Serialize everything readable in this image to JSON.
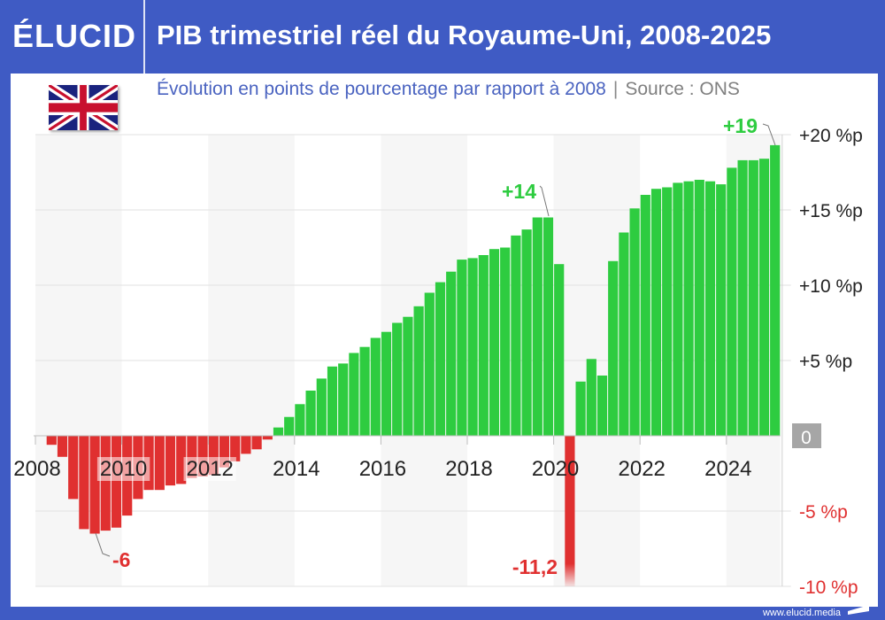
{
  "header": {
    "logo": "ÉLUCID",
    "title": "PIB trimestriel réel du Royaume-Uni, 2008-2025"
  },
  "subtitle": {
    "text": "Évolution en points de pourcentage par rapport à 2008",
    "separator": "|",
    "source": "Source : ONS"
  },
  "flag_icon": "united-kingdom-flag",
  "footer": {
    "url": "www.elucid.media"
  },
  "colors": {
    "frame": "#3f5bc4",
    "positive": "#2ecc40",
    "negative": "#e03030",
    "zero_badge": "#a6a6a6"
  },
  "chart_data": {
    "type": "bar",
    "title": "PIB trimestriel réel du Royaume-Uni, 2008-2025",
    "frequency": "quarterly",
    "start": "2008 T1",
    "end": "2025 T1",
    "ylim": [
      -10,
      20
    ],
    "yticks": [
      {
        "value": 20,
        "label": "+20 %p"
      },
      {
        "value": 15,
        "label": "+15 %p"
      },
      {
        "value": 10,
        "label": "+10 %p"
      },
      {
        "value": 5,
        "label": "+5 %p"
      },
      {
        "value": 0,
        "label": "0"
      },
      {
        "value": -5,
        "label": "-5 %p"
      },
      {
        "value": -10,
        "label": "-10 %p"
      }
    ],
    "xticks": [
      "2008",
      "2010",
      "2012",
      "2014",
      "2016",
      "2018",
      "2020",
      "2022",
      "2024"
    ],
    "grid": true,
    "values": [
      0,
      -0.6,
      -1.4,
      -4.2,
      -6.2,
      -6.5,
      -6.3,
      -6.1,
      -5.3,
      -4.2,
      -3.6,
      -3.6,
      -3.3,
      -3.2,
      -2.8,
      -2.7,
      -2.6,
      -2.1,
      -1.7,
      -1.2,
      -0.9,
      -0.25,
      0.55,
      1.25,
      2.1,
      3.0,
      3.8,
      4.6,
      4.8,
      5.5,
      5.9,
      6.5,
      6.9,
      7.5,
      7.9,
      8.6,
      9.5,
      10.2,
      10.9,
      11.7,
      11.8,
      12.0,
      12.4,
      12.5,
      13.3,
      13.7,
      14.5,
      14.5,
      11.4,
      -11.2,
      3.6,
      5.1,
      4.0,
      11.6,
      13.5,
      15.1,
      16.0,
      16.4,
      16.5,
      16.8,
      16.9,
      17.0,
      16.9,
      16.7,
      17.8,
      18.3,
      18.3,
      18.4,
      19.3
    ],
    "annotations": [
      {
        "label": "-6",
        "quarter": "2009 T2"
      },
      {
        "label": "+14",
        "quarter": "2019 T4"
      },
      {
        "label": "-11,2",
        "quarter": "2020 T2"
      },
      {
        "label": "+19",
        "quarter": "2025 T1"
      }
    ]
  }
}
